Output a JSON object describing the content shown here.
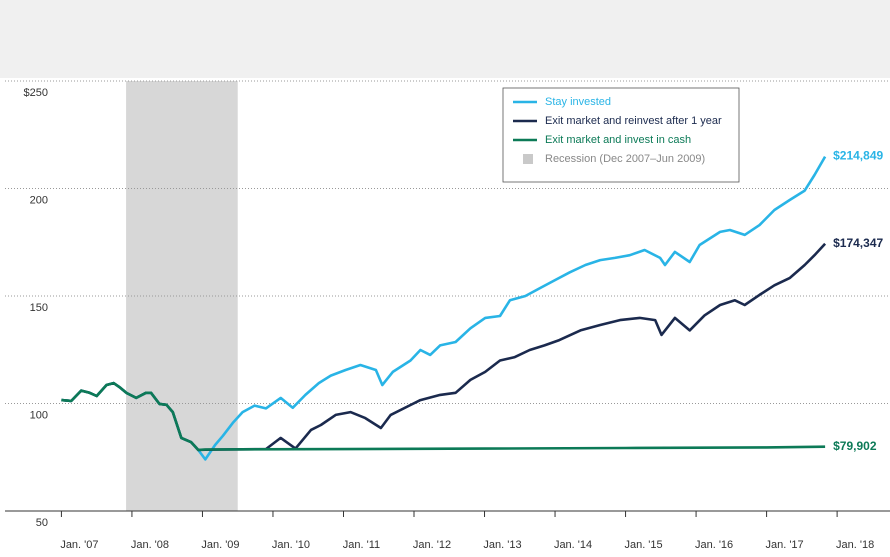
{
  "chart_data": {
    "type": "line",
    "xlim": [
      2006.2,
      2018.75
    ],
    "ylim": [
      50,
      250
    ],
    "xticks": [
      {
        "value": 2007,
        "label": "Jan. '07"
      },
      {
        "value": 2008,
        "label": "Jan. '08"
      },
      {
        "value": 2009,
        "label": "Jan. '09"
      },
      {
        "value": 2010,
        "label": "Jan. '10"
      },
      {
        "value": 2011,
        "label": "Jan. '11"
      },
      {
        "value": 2012,
        "label": "Jan. '12"
      },
      {
        "value": 2013,
        "label": "Jan. '13"
      },
      {
        "value": 2014,
        "label": "Jan. '14"
      },
      {
        "value": 2015,
        "label": "Jan. '15"
      },
      {
        "value": 2016,
        "label": "Jan. '16"
      },
      {
        "value": 2017,
        "label": "Jan. '17"
      },
      {
        "value": 2018,
        "label": "Jan. '18"
      }
    ],
    "yticks": [
      {
        "value": 250,
        "label": "$250"
      },
      200,
      150,
      100,
      50
    ],
    "grid": true,
    "recession": {
      "name": "Recession (Dec 2007–Jun 2009)",
      "color": "#c9c9c9",
      "range": [
        2007.917,
        2009.5
      ]
    },
    "series": [
      {
        "name": "Stay invested",
        "color": "#29b4e6",
        "end_label": "$214,849",
        "x": [
          2007,
          2007.14,
          2007.28,
          2007.4,
          2007.5,
          2007.64,
          2007.74,
          2007.82,
          2007.92,
          2008.06,
          2008.2,
          2008.27,
          2008.39,
          2008.49,
          2008.58,
          2008.7,
          2008.84,
          2008.94,
          2009.04,
          2009.18,
          2009.29,
          2009.43,
          2009.57,
          2009.74,
          2009.9,
          2010.11,
          2010.28,
          2010.46,
          2010.65,
          2010.82,
          2011.03,
          2011.24,
          2011.46,
          2011.55,
          2011.7,
          2011.95,
          2012.09,
          2012.23,
          2012.37,
          2012.59,
          2012.8,
          2013.01,
          2013.22,
          2013.36,
          2013.58,
          2013.79,
          2014.0,
          2014.21,
          2014.43,
          2014.64,
          2014.85,
          2015.06,
          2015.27,
          2015.49,
          2015.56,
          2015.7,
          2015.91,
          2016.05,
          2016.34,
          2016.48,
          2016.69,
          2016.9,
          2017.11,
          2017.33,
          2017.54,
          2017.68,
          2017.83
        ],
        "values": [
          101.6,
          101.2,
          106,
          105,
          103.5,
          108.6,
          109.5,
          107.7,
          105,
          102.6,
          105,
          105,
          99.8,
          99.4,
          96,
          84,
          82,
          78.4,
          74,
          80.7,
          85,
          91,
          96,
          99,
          97.7,
          102.6,
          98,
          104,
          109.5,
          113,
          115.6,
          117.9,
          115.6,
          108.6,
          114.7,
          120,
          124.9,
          122.6,
          127,
          128.6,
          135,
          139.8,
          140.7,
          148,
          150,
          153.7,
          157.4,
          161,
          164.4,
          166.7,
          167.7,
          169,
          171.4,
          167.7,
          164.4,
          170.5,
          165.8,
          173.7,
          179.8,
          180.7,
          178.4,
          183,
          190,
          194.7,
          199,
          206.3,
          214.849
        ]
      },
      {
        "name": "Exit market and reinvest after 1 year",
        "color": "#1b2a4e",
        "end_label": "$174,347",
        "x": [
          2007,
          2007.14,
          2007.28,
          2007.4,
          2007.5,
          2007.64,
          2007.74,
          2007.82,
          2007.92,
          2008.06,
          2008.2,
          2008.27,
          2008.39,
          2008.49,
          2008.58,
          2008.7,
          2008.84,
          2008.94,
          2009.04,
          2009.9,
          2010.11,
          2010.32,
          2010.54,
          2010.68,
          2010.89,
          2011.1,
          2011.31,
          2011.53,
          2011.67,
          2011.95,
          2012.09,
          2012.37,
          2012.59,
          2012.8,
          2013.01,
          2013.22,
          2013.43,
          2013.64,
          2013.85,
          2014.06,
          2014.36,
          2014.64,
          2014.92,
          2015.2,
          2015.42,
          2015.51,
          2015.7,
          2015.91,
          2016.12,
          2016.34,
          2016.55,
          2016.69,
          2016.9,
          2017.11,
          2017.33,
          2017.54,
          2017.68,
          2017.83
        ],
        "values": [
          101.6,
          101.2,
          106,
          105,
          103.5,
          108.6,
          109.5,
          107.7,
          105,
          102.6,
          105,
          105,
          99.8,
          99.4,
          96,
          84,
          82,
          78.4,
          78.5,
          78.8,
          84,
          79,
          87.7,
          90,
          94.7,
          96,
          93.2,
          88.6,
          94.7,
          99.3,
          101.6,
          104,
          105,
          111,
          114.7,
          120,
          121.6,
          124.9,
          127,
          129.5,
          134,
          136.5,
          138.8,
          139.8,
          138.8,
          131.9,
          139.8,
          134,
          141,
          145.8,
          148,
          145.8,
          150.5,
          155,
          158.4,
          164.4,
          169,
          174.347
        ]
      },
      {
        "name": "Exit market and invest in cash",
        "color": "#0c7a57",
        "end_label": "$79,902",
        "x": [
          2007,
          2007.14,
          2007.28,
          2007.4,
          2007.5,
          2007.64,
          2007.74,
          2007.82,
          2007.92,
          2008.06,
          2008.2,
          2008.27,
          2008.39,
          2008.49,
          2008.58,
          2008.7,
          2008.84,
          2008.94,
          2009.04,
          2011,
          2013,
          2015,
          2017,
          2017.83
        ],
        "values": [
          101.6,
          101.2,
          106,
          105,
          103.5,
          108.6,
          109.5,
          107.7,
          105,
          102.6,
          105,
          105,
          99.8,
          99.4,
          96,
          84,
          82,
          78.4,
          78.6,
          78.8,
          79.0,
          79.3,
          79.6,
          79.902
        ]
      }
    ]
  }
}
